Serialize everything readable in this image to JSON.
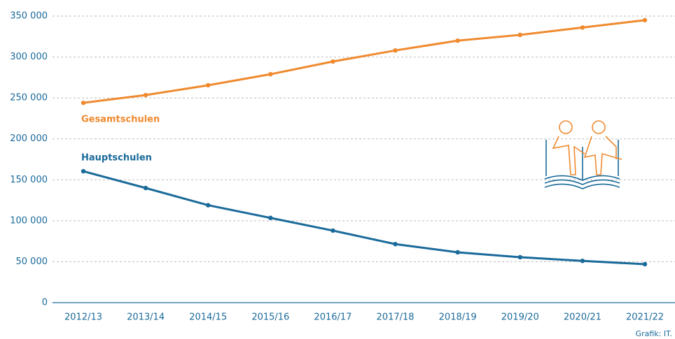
{
  "chart_data": {
    "type": "line",
    "categories": [
      "2012/13",
      "2013/14",
      "2014/15",
      "2015/16",
      "2016/17",
      "2017/18",
      "2018/19",
      "2019/20",
      "2020/21",
      "2021/22"
    ],
    "series": [
      {
        "name": "Gesamtschulen",
        "color": "#ef8a2f",
        "values": [
          244000,
          253500,
          265500,
          279000,
          294500,
          308000,
          320000,
          327000,
          336000,
          345000
        ]
      },
      {
        "name": "Hauptschulen",
        "color": "#1a6a9a",
        "values": [
          160500,
          140000,
          119000,
          103500,
          88000,
          71500,
          61500,
          55500,
          51000,
          47000
        ]
      }
    ],
    "ylim": [
      0,
      350000
    ],
    "yticks": [
      0,
      {
        "value": 50000,
        "label": "50 000"
      },
      {
        "value": 100000,
        "label": "100 000"
      },
      {
        "value": 150000,
        "label": "150 000"
      },
      {
        "value": 200000,
        "label": "200 000"
      },
      {
        "value": 250000,
        "label": "250 000"
      },
      {
        "value": 300000,
        "label": "300 000"
      },
      {
        "value": 350000,
        "label": "350 000"
      }
    ],
    "grid": true,
    "source": "Grafik: IT."
  }
}
